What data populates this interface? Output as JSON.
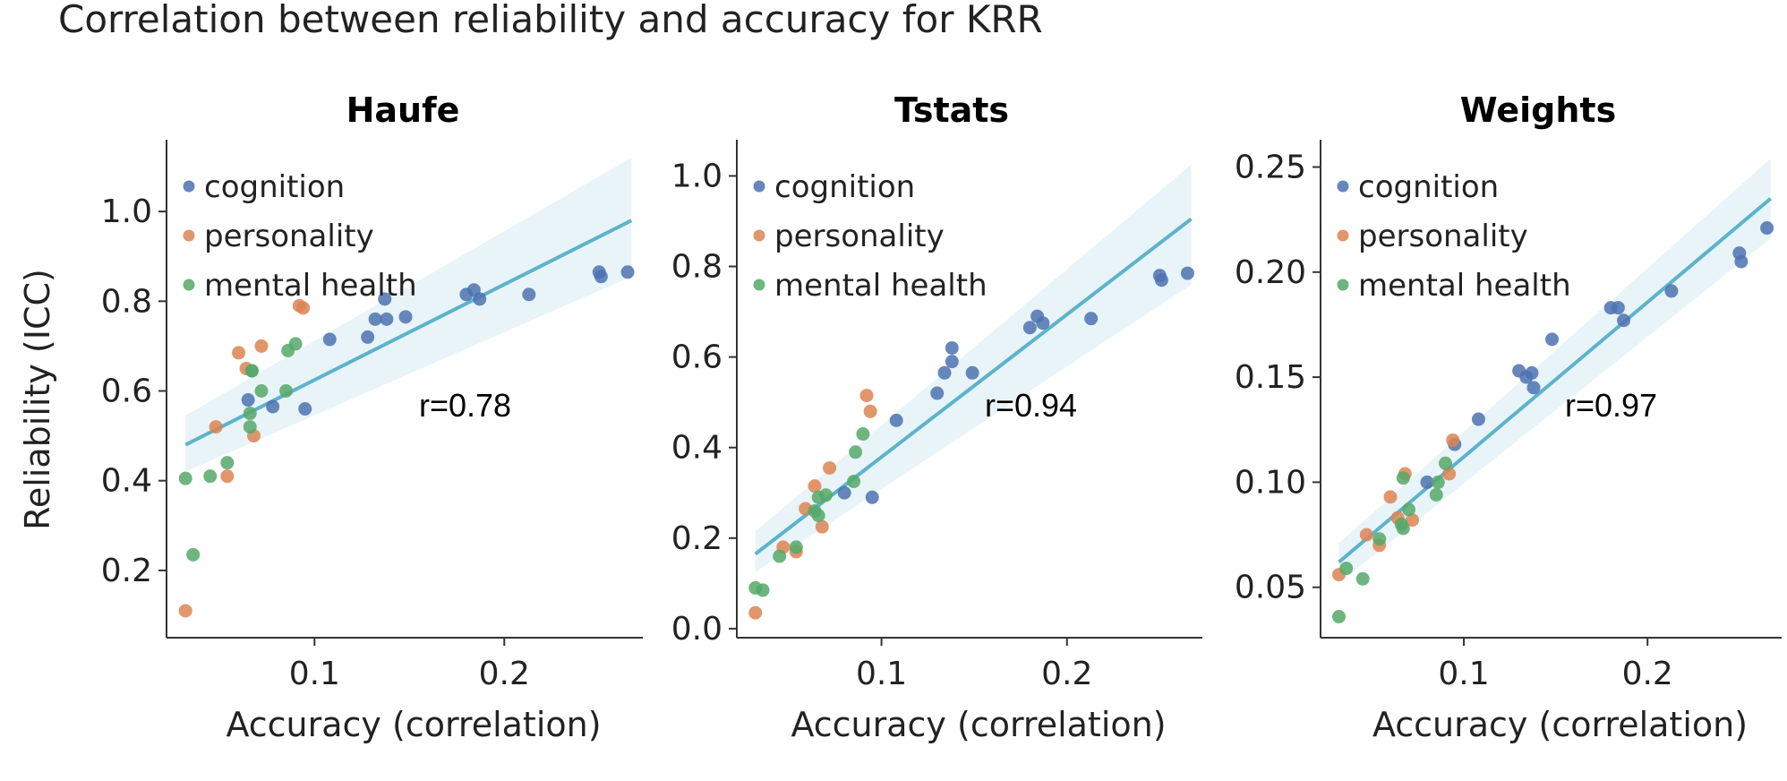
{
  "figure": {
    "title": "Correlation between reliability and accuracy for KRR"
  },
  "chart_data": [
    {
      "type": "scatter",
      "title": "Haufe",
      "xlabel": "Accuracy (correlation)",
      "ylabel": "Reliability (ICC)",
      "xlim": [
        0.022,
        0.273
      ],
      "ylim": [
        0.05,
        1.16
      ],
      "xticks": [
        0.1,
        0.2
      ],
      "yticks": [
        0.2,
        0.4,
        0.6,
        0.8,
        1.0
      ],
      "annotation": "r=0.78",
      "legend_position": "upper-left",
      "regression": {
        "x": [
          0.032,
          0.267
        ],
        "y": [
          0.48,
          0.98
        ],
        "band_lo": [
          0.42,
          0.855
        ],
        "band_hi": [
          0.545,
          1.12
        ]
      },
      "series": [
        {
          "name": "cognition",
          "color": "#4c72b0",
          "x": [
            0.065,
            0.078,
            0.095,
            0.108,
            0.128,
            0.132,
            0.137,
            0.138,
            0.148,
            0.18,
            0.184,
            0.187,
            0.213,
            0.25,
            0.251,
            0.265
          ],
          "y": [
            0.58,
            0.565,
            0.56,
            0.715,
            0.72,
            0.76,
            0.805,
            0.76,
            0.765,
            0.815,
            0.825,
            0.805,
            0.815,
            0.865,
            0.855,
            0.865
          ]
        },
        {
          "name": "personality",
          "color": "#dd8452",
          "x": [
            0.032,
            0.048,
            0.054,
            0.06,
            0.064,
            0.068,
            0.072,
            0.092,
            0.094
          ],
          "y": [
            0.11,
            0.52,
            0.41,
            0.685,
            0.65,
            0.5,
            0.7,
            0.79,
            0.785
          ]
        },
        {
          "name": "mental health",
          "color": "#55a868",
          "x": [
            0.032,
            0.036,
            0.045,
            0.054,
            0.066,
            0.066,
            0.067,
            0.067,
            0.072,
            0.085,
            0.086,
            0.09
          ],
          "y": [
            0.405,
            0.235,
            0.41,
            0.44,
            0.55,
            0.52,
            0.645,
            0.645,
            0.6,
            0.6,
            0.69,
            0.705
          ]
        }
      ]
    },
    {
      "type": "scatter",
      "title": "Tstats",
      "xlabel": "Accuracy (correlation)",
      "ylabel": "",
      "xlim": [
        0.022,
        0.273
      ],
      "ylim": [
        -0.02,
        1.08
      ],
      "xticks": [
        0.1,
        0.2
      ],
      "yticks": [
        0.0,
        0.2,
        0.4,
        0.6,
        0.8,
        1.0
      ],
      "annotation": "r=0.94",
      "legend_position": "upper-left",
      "regression": {
        "x": [
          0.032,
          0.267
        ],
        "y": [
          0.165,
          0.905
        ],
        "band_lo": [
          0.125,
          0.76
        ],
        "band_hi": [
          0.215,
          1.025
        ]
      },
      "series": [
        {
          "name": "cognition",
          "color": "#4c72b0",
          "x": [
            0.08,
            0.095,
            0.108,
            0.13,
            0.134,
            0.138,
            0.138,
            0.149,
            0.18,
            0.184,
            0.187,
            0.213,
            0.25,
            0.251,
            0.265
          ],
          "y": [
            0.3,
            0.29,
            0.46,
            0.52,
            0.565,
            0.59,
            0.62,
            0.565,
            0.665,
            0.69,
            0.675,
            0.685,
            0.78,
            0.77,
            0.785
          ]
        },
        {
          "name": "personality",
          "color": "#dd8452",
          "x": [
            0.032,
            0.047,
            0.054,
            0.059,
            0.064,
            0.068,
            0.072,
            0.092,
            0.094
          ],
          "y": [
            0.035,
            0.18,
            0.17,
            0.265,
            0.315,
            0.225,
            0.355,
            0.515,
            0.48
          ]
        },
        {
          "name": "mental health",
          "color": "#55a868",
          "x": [
            0.032,
            0.036,
            0.045,
            0.054,
            0.064,
            0.066,
            0.066,
            0.07,
            0.085,
            0.086,
            0.09
          ],
          "y": [
            0.09,
            0.085,
            0.16,
            0.18,
            0.26,
            0.25,
            0.29,
            0.295,
            0.325,
            0.39,
            0.43
          ]
        }
      ]
    },
    {
      "type": "scatter",
      "title": "Weights",
      "xlabel": "Accuracy (correlation)",
      "ylabel": "",
      "xlim": [
        0.022,
        0.273
      ],
      "ylim": [
        0.026,
        0.263
      ],
      "xticks": [
        0.1,
        0.2
      ],
      "yticks": [
        0.05,
        0.1,
        0.15,
        0.2,
        0.25
      ],
      "annotation": "r=0.97",
      "legend_position": "upper-left",
      "regression": {
        "x": [
          0.032,
          0.267
        ],
        "y": [
          0.062,
          0.235
        ],
        "band_lo": [
          0.052,
          0.216
        ],
        "band_hi": [
          0.071,
          0.254
        ]
      },
      "series": [
        {
          "name": "cognition",
          "color": "#4c72b0",
          "x": [
            0.08,
            0.095,
            0.108,
            0.13,
            0.134,
            0.137,
            0.138,
            0.148,
            0.18,
            0.184,
            0.187,
            0.213,
            0.25,
            0.251,
            0.265
          ],
          "y": [
            0.1,
            0.118,
            0.13,
            0.153,
            0.15,
            0.152,
            0.145,
            0.168,
            0.183,
            0.183,
            0.177,
            0.191,
            0.209,
            0.205,
            0.221
          ]
        },
        {
          "name": "personality",
          "color": "#dd8452",
          "x": [
            0.032,
            0.047,
            0.054,
            0.06,
            0.064,
            0.068,
            0.072,
            0.092,
            0.094
          ],
          "y": [
            0.056,
            0.075,
            0.07,
            0.093,
            0.083,
            0.104,
            0.082,
            0.104,
            0.12
          ]
        },
        {
          "name": "mental health",
          "color": "#55a868",
          "x": [
            0.032,
            0.036,
            0.045,
            0.054,
            0.066,
            0.067,
            0.067,
            0.07,
            0.085,
            0.086,
            0.09
          ],
          "y": [
            0.036,
            0.059,
            0.054,
            0.073,
            0.08,
            0.078,
            0.102,
            0.087,
            0.094,
            0.1,
            0.109
          ]
        }
      ]
    }
  ]
}
